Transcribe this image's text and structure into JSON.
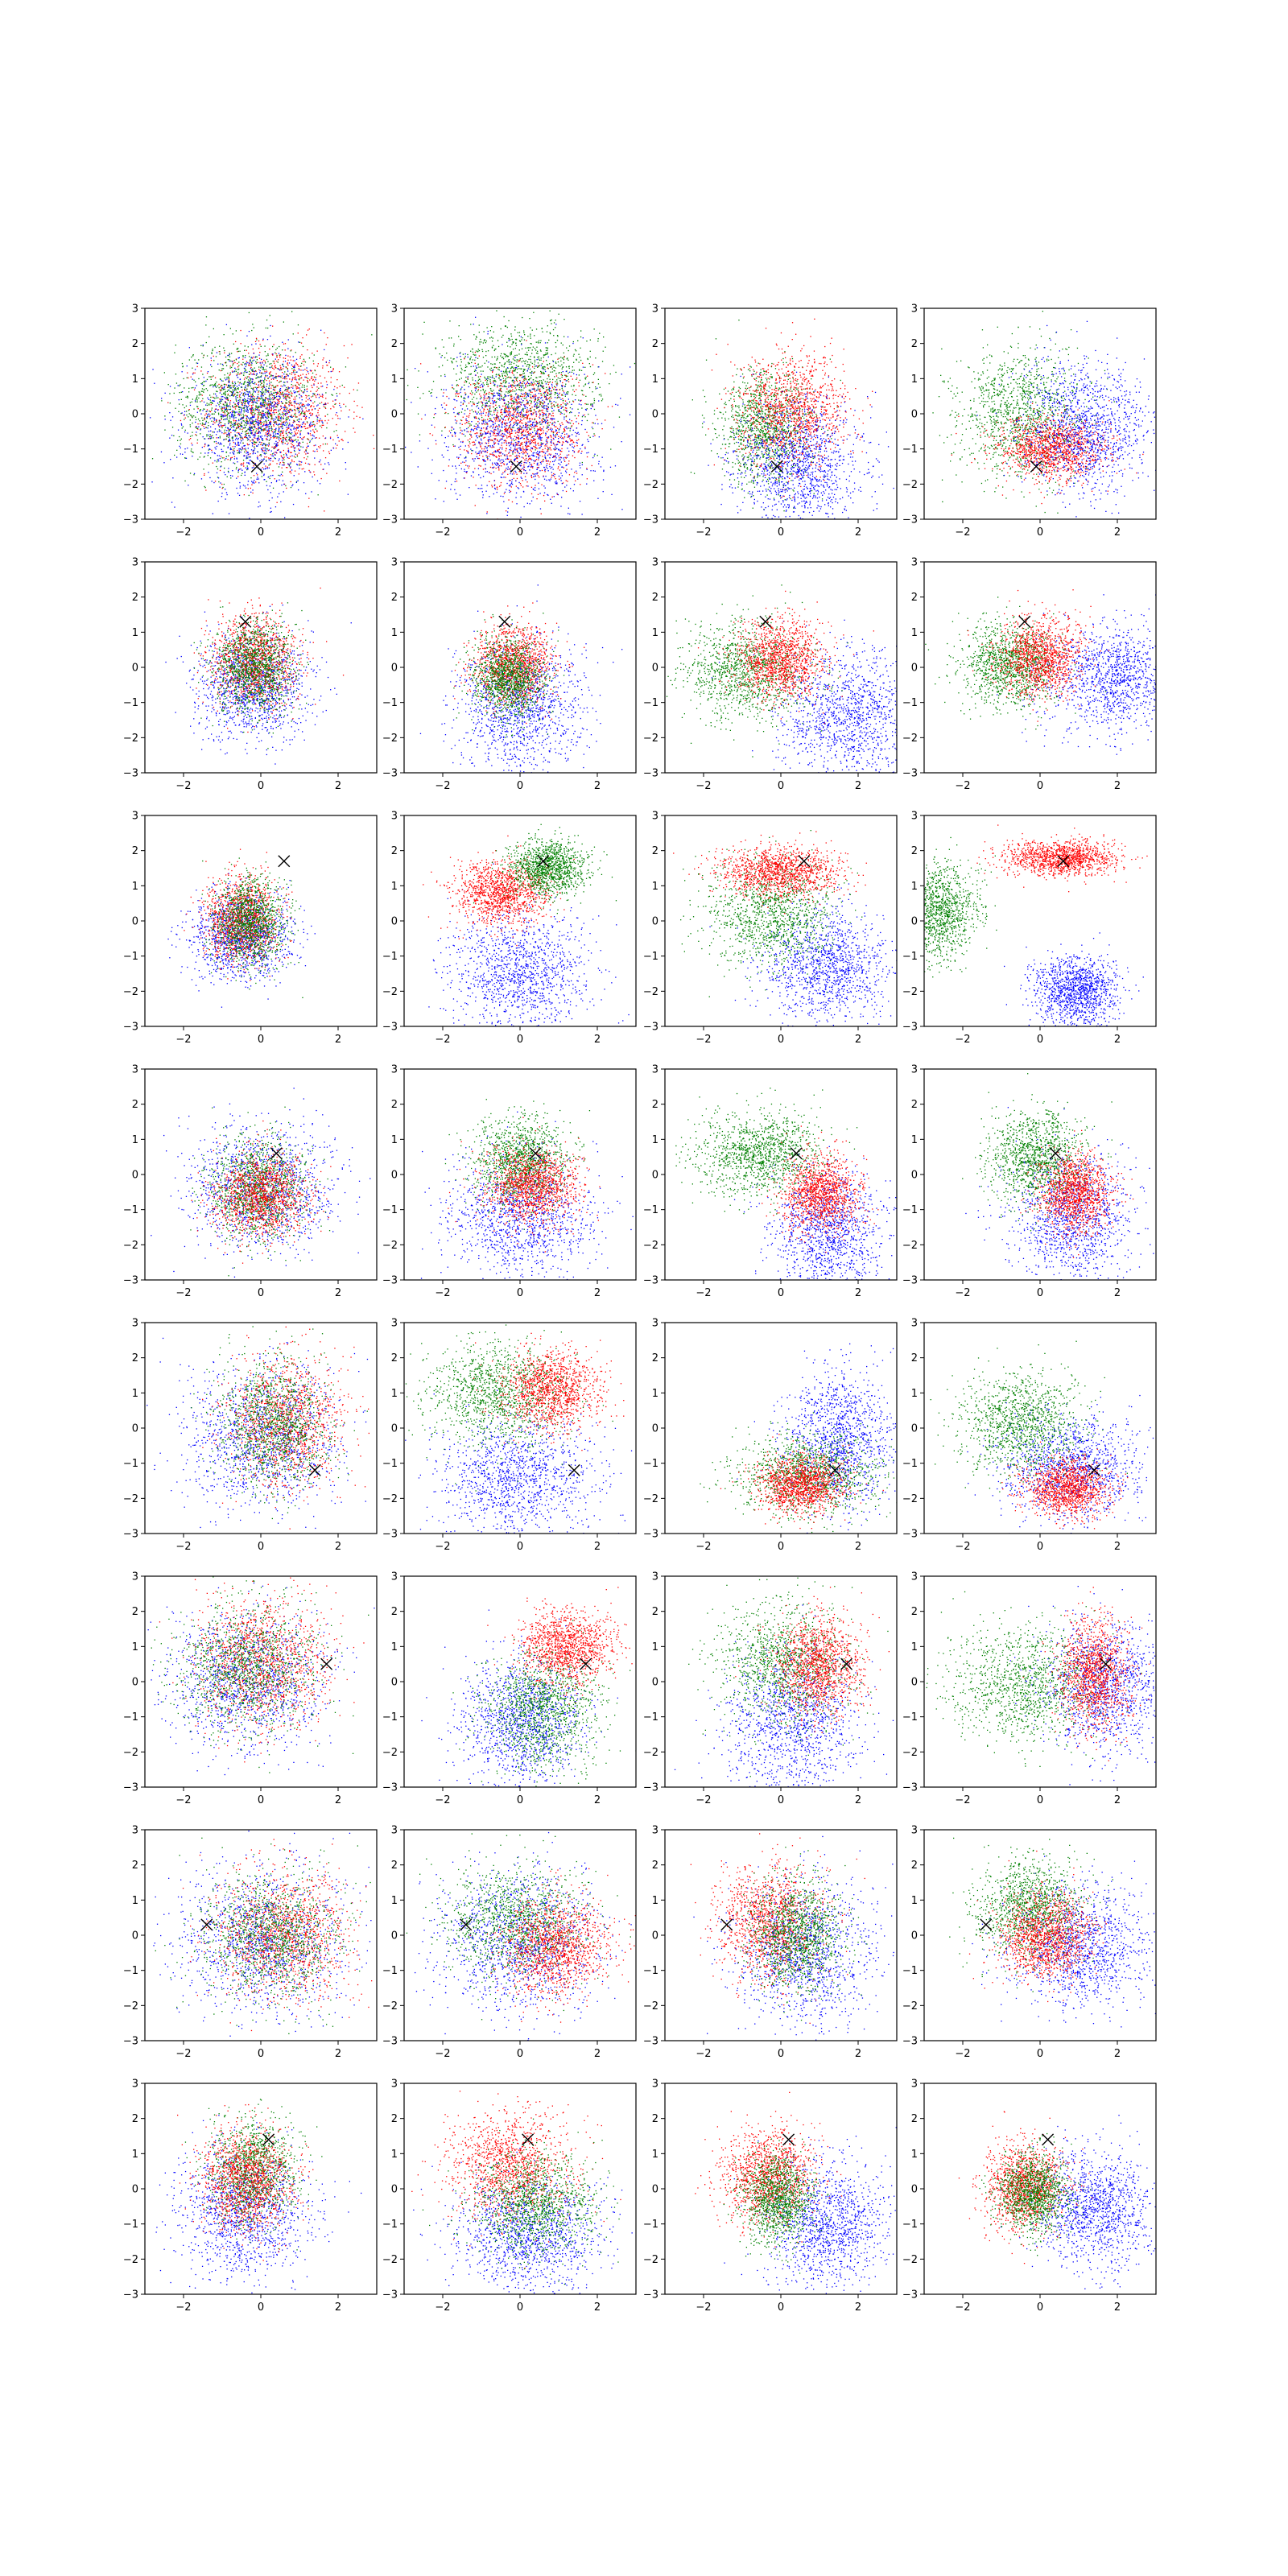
{
  "figure": {
    "rows": 8,
    "cols": 4,
    "colors": {
      "red": "#ff0000",
      "green": "#008000",
      "blue": "#0000ff",
      "marker": "#000000",
      "axes": "#000000",
      "background": "#ffffff"
    }
  },
  "chart_data": {
    "type": "scatter",
    "grid": false,
    "legend": "none",
    "xlim": [
      -3,
      3
    ],
    "ylim": [
      -3,
      3
    ],
    "xticks": [
      "−2",
      "0",
      "2"
    ],
    "yticks": [
      "3",
      "2",
      "1",
      "0",
      "−1",
      "−2",
      "−3"
    ],
    "xtick_values": [
      -2,
      0,
      2
    ],
    "ytick_values": [
      3,
      2,
      1,
      0,
      -1,
      -2,
      -3
    ],
    "points_per_cloud": 1200,
    "note_marker": "X",
    "subplots": [
      {
        "row": 1,
        "col": 1,
        "marker": [
          -0.1,
          -1.5
        ],
        "clouds": [
          {
            "color": "red",
            "cx": 0.4,
            "cy": 0.1,
            "sx": 0.9,
            "sy": 0.95
          },
          {
            "color": "green",
            "cx": -0.4,
            "cy": 0.3,
            "sx": 0.9,
            "sy": 0.9
          },
          {
            "color": "blue",
            "cx": -0.1,
            "cy": -0.3,
            "sx": 0.9,
            "sy": 0.95
          }
        ]
      },
      {
        "row": 1,
        "col": 2,
        "marker": [
          -0.1,
          -1.5
        ],
        "clouds": [
          {
            "color": "green",
            "cx": 0.0,
            "cy": 1.0,
            "sx": 1.0,
            "sy": 0.8
          },
          {
            "color": "red",
            "cx": 0.0,
            "cy": -0.4,
            "sx": 0.8,
            "sy": 0.85
          },
          {
            "color": "blue",
            "cx": 0.0,
            "cy": -0.6,
            "sx": 1.0,
            "sy": 1.0
          }
        ]
      },
      {
        "row": 1,
        "col": 3,
        "marker": [
          -0.1,
          -1.5
        ],
        "clouds": [
          {
            "color": "green",
            "cx": -0.4,
            "cy": -0.4,
            "sx": 0.6,
            "sy": 0.8
          },
          {
            "color": "red",
            "cx": 0.3,
            "cy": 0.1,
            "sx": 0.7,
            "sy": 0.8
          },
          {
            "color": "blue",
            "cx": 0.5,
            "cy": -1.5,
            "sx": 0.8,
            "sy": 0.9
          }
        ]
      },
      {
        "row": 1,
        "col": 4,
        "marker": [
          -0.1,
          -1.5
        ],
        "clouds": [
          {
            "color": "green",
            "cx": -0.5,
            "cy": 0.0,
            "sx": 0.8,
            "sy": 0.9
          },
          {
            "color": "red",
            "cx": 0.3,
            "cy": -1.0,
            "sx": 0.7,
            "sy": 0.45
          },
          {
            "color": "blue",
            "cx": 1.2,
            "cy": -0.4,
            "sx": 0.8,
            "sy": 0.9
          }
        ]
      },
      {
        "row": 2,
        "col": 1,
        "marker": [
          -0.4,
          1.3
        ],
        "clouds": [
          {
            "color": "blue",
            "cx": -0.2,
            "cy": -0.5,
            "sx": 0.75,
            "sy": 0.75
          },
          {
            "color": "red",
            "cx": -0.2,
            "cy": 0.2,
            "sx": 0.55,
            "sy": 0.65
          },
          {
            "color": "green",
            "cx": -0.2,
            "cy": 0.0,
            "sx": 0.5,
            "sy": 0.65
          }
        ]
      },
      {
        "row": 2,
        "col": 2,
        "marker": [
          -0.4,
          1.3
        ],
        "clouds": [
          {
            "color": "blue",
            "cx": 0.0,
            "cy": -1.2,
            "sx": 0.8,
            "sy": 0.95
          },
          {
            "color": "red",
            "cx": -0.2,
            "cy": 0.1,
            "sx": 0.5,
            "sy": 0.55
          },
          {
            "color": "green",
            "cx": -0.3,
            "cy": -0.3,
            "sx": 0.45,
            "sy": 0.55
          }
        ]
      },
      {
        "row": 2,
        "col": 3,
        "marker": [
          -0.4,
          1.3
        ],
        "clouds": [
          {
            "color": "blue",
            "cx": 1.7,
            "cy": -1.3,
            "sx": 0.9,
            "sy": 0.9
          },
          {
            "color": "green",
            "cx": -0.9,
            "cy": -0.1,
            "sx": 0.8,
            "sy": 0.7
          },
          {
            "color": "red",
            "cx": 0.0,
            "cy": 0.2,
            "sx": 0.55,
            "sy": 0.55
          }
        ]
      },
      {
        "row": 2,
        "col": 4,
        "marker": [
          -0.4,
          1.3
        ],
        "clouds": [
          {
            "color": "blue",
            "cx": 1.9,
            "cy": -0.3,
            "sx": 0.9,
            "sy": 0.75
          },
          {
            "color": "green",
            "cx": -0.8,
            "cy": 0.1,
            "sx": 0.6,
            "sy": 0.6
          },
          {
            "color": "red",
            "cx": 0.0,
            "cy": 0.3,
            "sx": 0.55,
            "sy": 0.55
          }
        ]
      },
      {
        "row": 3,
        "col": 1,
        "marker": [
          0.6,
          1.7
        ],
        "clouds": [
          {
            "color": "blue",
            "cx": -0.5,
            "cy": -0.4,
            "sx": 0.65,
            "sy": 0.6
          },
          {
            "color": "red",
            "cx": -0.5,
            "cy": 0.1,
            "sx": 0.45,
            "sy": 0.6
          },
          {
            "color": "green",
            "cx": -0.3,
            "cy": 0.0,
            "sx": 0.45,
            "sy": 0.6
          }
        ]
      },
      {
        "row": 3,
        "col": 2,
        "marker": [
          0.6,
          1.7
        ],
        "clouds": [
          {
            "color": "blue",
            "cx": 0.0,
            "cy": -1.5,
            "sx": 0.9,
            "sy": 0.8
          },
          {
            "color": "red",
            "cx": -0.5,
            "cy": 0.8,
            "sx": 0.6,
            "sy": 0.45
          },
          {
            "color": "green",
            "cx": 0.7,
            "cy": 1.5,
            "sx": 0.5,
            "sy": 0.4
          }
        ]
      },
      {
        "row": 3,
        "col": 3,
        "marker": [
          0.6,
          1.7
        ],
        "clouds": [
          {
            "color": "blue",
            "cx": 1.2,
            "cy": -1.3,
            "sx": 0.8,
            "sy": 0.8
          },
          {
            "color": "green",
            "cx": -0.3,
            "cy": 0.2,
            "sx": 0.8,
            "sy": 0.75
          },
          {
            "color": "red",
            "cx": 0.0,
            "cy": 1.4,
            "sx": 0.75,
            "sy": 0.35
          }
        ]
      },
      {
        "row": 3,
        "col": 4,
        "marker": [
          0.6,
          1.7
        ],
        "clouds": [
          {
            "color": "blue",
            "cx": 0.9,
            "cy": -2.0,
            "sx": 0.55,
            "sy": 0.5
          },
          {
            "color": "green",
            "cx": -2.6,
            "cy": 0.3,
            "sx": 0.5,
            "sy": 0.65
          },
          {
            "color": "red",
            "cx": 0.5,
            "cy": 1.8,
            "sx": 0.75,
            "sy": 0.25
          }
        ]
      },
      {
        "row": 4,
        "col": 1,
        "marker": [
          0.4,
          0.6
        ],
        "clouds": [
          {
            "color": "blue",
            "cx": 0.0,
            "cy": -0.4,
            "sx": 0.95,
            "sy": 0.85
          },
          {
            "color": "green",
            "cx": -0.1,
            "cy": -0.4,
            "sx": 0.6,
            "sy": 0.7
          },
          {
            "color": "red",
            "cx": 0.0,
            "cy": -0.6,
            "sx": 0.6,
            "sy": 0.6
          }
        ]
      },
      {
        "row": 4,
        "col": 2,
        "marker": [
          0.4,
          0.6
        ],
        "clouds": [
          {
            "color": "blue",
            "cx": 0.0,
            "cy": -1.2,
            "sx": 0.9,
            "sy": 0.9
          },
          {
            "color": "green",
            "cx": 0.0,
            "cy": 0.4,
            "sx": 0.6,
            "sy": 0.6
          },
          {
            "color": "red",
            "cx": 0.3,
            "cy": -0.3,
            "sx": 0.6,
            "sy": 0.55
          }
        ]
      },
      {
        "row": 4,
        "col": 3,
        "marker": [
          0.4,
          0.6
        ],
        "clouds": [
          {
            "color": "blue",
            "cx": 1.2,
            "cy": -1.6,
            "sx": 0.7,
            "sy": 0.9
          },
          {
            "color": "green",
            "cx": -0.5,
            "cy": 0.6,
            "sx": 0.8,
            "sy": 0.6
          },
          {
            "color": "red",
            "cx": 1.0,
            "cy": -0.5,
            "sx": 0.5,
            "sy": 0.55
          }
        ]
      },
      {
        "row": 4,
        "col": 4,
        "marker": [
          0.4,
          0.6
        ],
        "clouds": [
          {
            "color": "blue",
            "cx": 0.8,
            "cy": -1.2,
            "sx": 0.8,
            "sy": 0.9
          },
          {
            "color": "green",
            "cx": -0.1,
            "cy": 0.5,
            "sx": 0.6,
            "sy": 0.65
          },
          {
            "color": "red",
            "cx": 0.9,
            "cy": -0.5,
            "sx": 0.45,
            "sy": 0.55
          }
        ]
      },
      {
        "row": 5,
        "col": 1,
        "marker": [
          1.4,
          -1.2
        ],
        "clouds": [
          {
            "color": "blue",
            "cx": 0.0,
            "cy": -0.3,
            "sx": 1.0,
            "sy": 1.0
          },
          {
            "color": "red",
            "cx": 0.6,
            "cy": 0.2,
            "sx": 0.75,
            "sy": 0.9
          },
          {
            "color": "green",
            "cx": 0.3,
            "cy": 0.1,
            "sx": 0.7,
            "sy": 0.9
          }
        ]
      },
      {
        "row": 5,
        "col": 2,
        "marker": [
          1.4,
          -1.2
        ],
        "clouds": [
          {
            "color": "blue",
            "cx": 0.0,
            "cy": -1.4,
            "sx": 1.0,
            "sy": 0.85
          },
          {
            "color": "green",
            "cx": -0.6,
            "cy": 1.0,
            "sx": 0.9,
            "sy": 0.7
          },
          {
            "color": "red",
            "cx": 0.8,
            "cy": 1.1,
            "sx": 0.6,
            "sy": 0.55
          }
        ]
      },
      {
        "row": 5,
        "col": 3,
        "marker": [
          1.4,
          -1.2
        ],
        "clouds": [
          {
            "color": "blue",
            "cx": 1.5,
            "cy": -0.3,
            "sx": 0.7,
            "sy": 1.0
          },
          {
            "color": "green",
            "cx": 0.7,
            "cy": -1.3,
            "sx": 0.9,
            "sy": 0.55
          },
          {
            "color": "red",
            "cx": 0.5,
            "cy": -1.6,
            "sx": 0.55,
            "sy": 0.4
          }
        ]
      },
      {
        "row": 5,
        "col": 4,
        "marker": [
          1.4,
          -1.2
        ],
        "clouds": [
          {
            "color": "blue",
            "cx": 0.8,
            "cy": -1.1,
            "sx": 0.9,
            "sy": 0.75
          },
          {
            "color": "green",
            "cx": -0.5,
            "cy": 0.2,
            "sx": 0.8,
            "sy": 0.7
          },
          {
            "color": "red",
            "cx": 0.7,
            "cy": -1.7,
            "sx": 0.55,
            "sy": 0.4
          }
        ]
      },
      {
        "row": 6,
        "col": 1,
        "marker": [
          1.7,
          0.5
        ],
        "clouds": [
          {
            "color": "blue",
            "cx": -0.4,
            "cy": 0.0,
            "sx": 1.0,
            "sy": 1.0
          },
          {
            "color": "red",
            "cx": 0.0,
            "cy": 0.6,
            "sx": 0.85,
            "sy": 0.9
          },
          {
            "color": "green",
            "cx": -0.4,
            "cy": 0.4,
            "sx": 0.9,
            "sy": 0.9
          }
        ]
      },
      {
        "row": 6,
        "col": 2,
        "marker": [
          1.7,
          0.5
        ],
        "clouds": [
          {
            "color": "blue",
            "cx": 0.0,
            "cy": -1.1,
            "sx": 0.8,
            "sy": 0.9
          },
          {
            "color": "red",
            "cx": 1.2,
            "cy": 1.0,
            "sx": 0.6,
            "sy": 0.5
          },
          {
            "color": "green",
            "cx": 0.6,
            "cy": -0.8,
            "sx": 0.75,
            "sy": 0.8
          }
        ]
      },
      {
        "row": 6,
        "col": 3,
        "marker": [
          1.7,
          0.5
        ],
        "clouds": [
          {
            "color": "blue",
            "cx": 0.3,
            "cy": -1.2,
            "sx": 0.85,
            "sy": 1.0
          },
          {
            "color": "green",
            "cx": 0.1,
            "cy": 0.5,
            "sx": 0.85,
            "sy": 0.85
          },
          {
            "color": "red",
            "cx": 1.0,
            "cy": 0.5,
            "sx": 0.55,
            "sy": 0.7
          }
        ]
      },
      {
        "row": 6,
        "col": 4,
        "marker": [
          1.7,
          0.5
        ],
        "clouds": [
          {
            "color": "blue",
            "cx": 1.7,
            "cy": -0.1,
            "sx": 0.8,
            "sy": 0.9
          },
          {
            "color": "green",
            "cx": -0.4,
            "cy": 0.0,
            "sx": 0.95,
            "sy": 0.85
          },
          {
            "color": "red",
            "cx": 1.4,
            "cy": 0.2,
            "sx": 0.45,
            "sy": 0.75
          }
        ]
      },
      {
        "row": 7,
        "col": 1,
        "marker": [
          -1.4,
          0.3
        ],
        "clouds": [
          {
            "color": "blue",
            "cx": 0.0,
            "cy": -0.1,
            "sx": 1.1,
            "sy": 1.0
          },
          {
            "color": "red",
            "cx": 0.6,
            "cy": 0.0,
            "sx": 0.9,
            "sy": 0.9
          },
          {
            "color": "green",
            "cx": 0.3,
            "cy": 0.0,
            "sx": 0.9,
            "sy": 0.9
          }
        ]
      },
      {
        "row": 7,
        "col": 2,
        "marker": [
          -1.4,
          0.3
        ],
        "clouds": [
          {
            "color": "blue",
            "cx": 0.0,
            "cy": -0.2,
            "sx": 1.0,
            "sy": 1.0
          },
          {
            "color": "green",
            "cx": -0.1,
            "cy": 0.4,
            "sx": 0.9,
            "sy": 0.8
          },
          {
            "color": "red",
            "cx": 0.9,
            "cy": -0.3,
            "sx": 0.7,
            "sy": 0.7
          }
        ]
      },
      {
        "row": 7,
        "col": 3,
        "marker": [
          -1.4,
          0.3
        ],
        "clouds": [
          {
            "color": "blue",
            "cx": 0.6,
            "cy": -0.5,
            "sx": 0.9,
            "sy": 1.0
          },
          {
            "color": "red",
            "cx": -0.3,
            "cy": 0.4,
            "sx": 0.7,
            "sy": 0.8
          },
          {
            "color": "green",
            "cx": 0.4,
            "cy": 0.0,
            "sx": 0.6,
            "sy": 0.8
          }
        ]
      },
      {
        "row": 7,
        "col": 4,
        "marker": [
          -1.4,
          0.3
        ],
        "clouds": [
          {
            "color": "blue",
            "cx": 1.1,
            "cy": -0.3,
            "sx": 0.9,
            "sy": 0.85
          },
          {
            "color": "green",
            "cx": -0.3,
            "cy": 0.8,
            "sx": 0.7,
            "sy": 0.7
          },
          {
            "color": "red",
            "cx": 0.1,
            "cy": 0.0,
            "sx": 0.6,
            "sy": 0.6
          }
        ]
      },
      {
        "row": 8,
        "col": 1,
        "marker": [
          0.2,
          1.4
        ],
        "clouds": [
          {
            "color": "blue",
            "cx": -0.4,
            "cy": -0.7,
            "sx": 0.85,
            "sy": 0.9
          },
          {
            "color": "green",
            "cx": -0.2,
            "cy": 0.5,
            "sx": 0.55,
            "sy": 0.7
          },
          {
            "color": "red",
            "cx": -0.4,
            "cy": 0.3,
            "sx": 0.6,
            "sy": 0.75
          }
        ]
      },
      {
        "row": 8,
        "col": 2,
        "marker": [
          0.2,
          1.4
        ],
        "clouds": [
          {
            "color": "blue",
            "cx": 0.2,
            "cy": -1.3,
            "sx": 0.95,
            "sy": 0.8
          },
          {
            "color": "red",
            "cx": -0.3,
            "cy": 0.7,
            "sx": 0.8,
            "sy": 0.75
          },
          {
            "color": "green",
            "cx": 0.4,
            "cy": -0.4,
            "sx": 0.8,
            "sy": 0.7
          }
        ]
      },
      {
        "row": 8,
        "col": 3,
        "marker": [
          0.2,
          1.4
        ],
        "clouds": [
          {
            "color": "blue",
            "cx": 1.2,
            "cy": -1.0,
            "sx": 0.8,
            "sy": 0.9
          },
          {
            "color": "red",
            "cx": -0.3,
            "cy": 0.4,
            "sx": 0.6,
            "sy": 0.65
          },
          {
            "color": "green",
            "cx": -0.1,
            "cy": -0.3,
            "sx": 0.45,
            "sy": 0.6
          }
        ]
      },
      {
        "row": 8,
        "col": 4,
        "marker": [
          0.2,
          1.4
        ],
        "clouds": [
          {
            "color": "blue",
            "cx": 1.4,
            "cy": -0.6,
            "sx": 0.75,
            "sy": 0.8
          },
          {
            "color": "red",
            "cx": -0.4,
            "cy": 0.1,
            "sx": 0.5,
            "sy": 0.6
          },
          {
            "color": "green",
            "cx": -0.2,
            "cy": -0.1,
            "sx": 0.45,
            "sy": 0.55
          }
        ]
      }
    ]
  }
}
